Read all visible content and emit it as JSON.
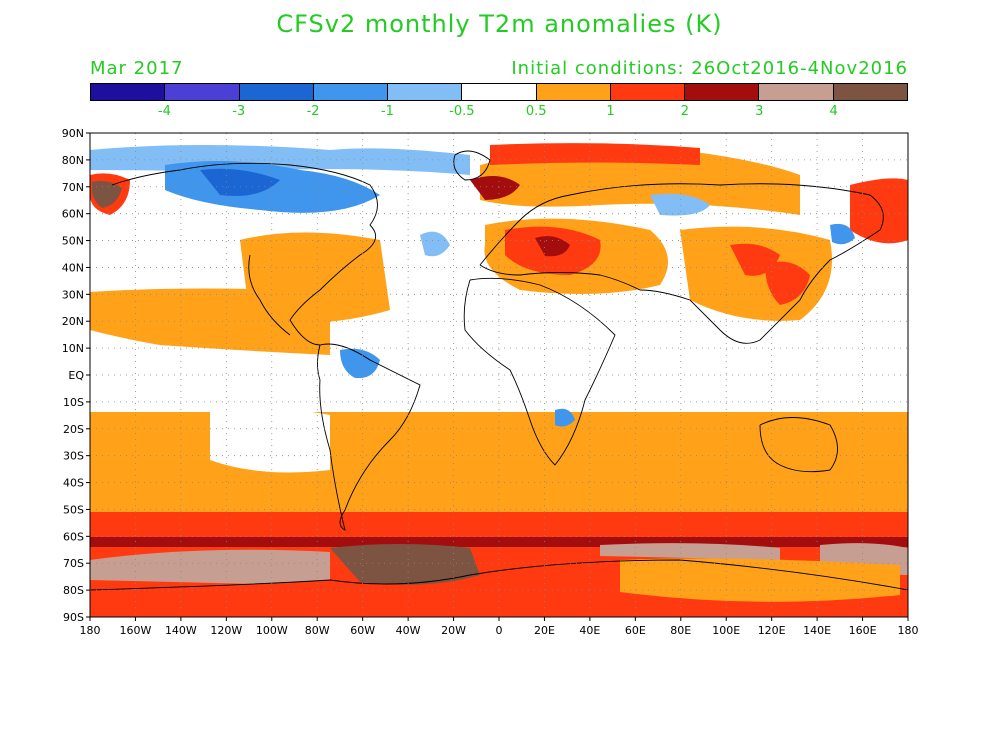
{
  "title": "CFSv2 monthly T2m anomalies (K)",
  "valid_month": "Mar 2017",
  "initial_conditions": "Initial conditions: 26Oct2016-4Nov2016",
  "colorbar": {
    "colors": [
      "#1e0f9e",
      "#4b3fd6",
      "#1c66d4",
      "#3f96ec",
      "#82bef5",
      "#ffffff",
      "#ffa21a",
      "#ff3a10",
      "#a30d0d",
      "#c79e92",
      "#7d5442"
    ],
    "labels": [
      "-4",
      "-3",
      "-2",
      "-1",
      "-0.5",
      "0.5",
      "1",
      "2",
      "3",
      "4"
    ]
  },
  "lat_labels": [
    "90N",
    "80N",
    "70N",
    "60N",
    "50N",
    "40N",
    "30N",
    "20N",
    "10N",
    "EQ",
    "10S",
    "20S",
    "30S",
    "40S",
    "50S",
    "60S",
    "70S",
    "80S",
    "90S"
  ],
  "lon_labels": [
    "180",
    "160W",
    "140W",
    "120W",
    "100W",
    "80W",
    "60W",
    "40W",
    "20W",
    "0",
    "20E",
    "40E",
    "60E",
    "80E",
    "100E",
    "120E",
    "140E",
    "160E",
    "180"
  ]
}
